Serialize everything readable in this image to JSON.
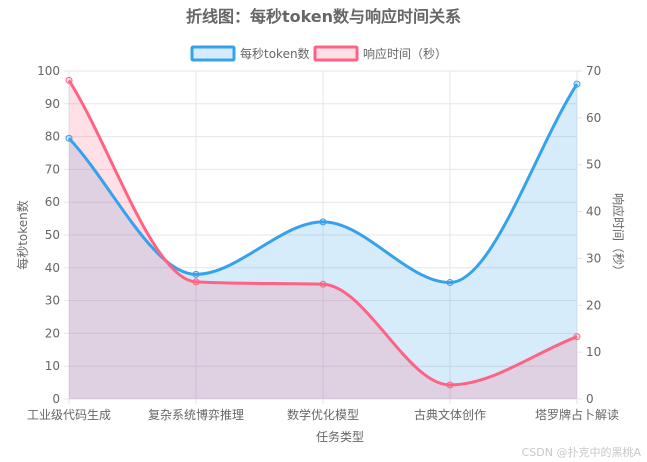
{
  "chart_data": {
    "type": "line",
    "title": "折线图：每秒token数与响应时间关系",
    "categories": [
      "工业级代码生成",
      "复杂系统博弈推理",
      "数学优化模型",
      "古典文体创作",
      "塔罗牌占卜解读"
    ],
    "xlabel": "任务类型",
    "ylabel_left": "每秒token数",
    "ylabel_right": "响应时间（秒）",
    "ylim_left": [
      0,
      100
    ],
    "ylim_right": [
      0,
      70
    ],
    "yticks_left": [
      "0",
      "10",
      "20",
      "30",
      "40",
      "50",
      "60",
      "70",
      "80",
      "90",
      "100"
    ],
    "yticks_right": [
      "0",
      "10",
      "20",
      "30",
      "40",
      "50",
      "60",
      "70"
    ],
    "grid": true,
    "legend_position": "top",
    "series": [
      {
        "name": "每秒token数",
        "axis": "left",
        "values": [
          79.5,
          38,
          54,
          35.5,
          96
        ],
        "color": "#36a2eb",
        "fill": "rgba(54,162,235,0.2)"
      },
      {
        "name": "响应时间（秒）",
        "axis": "right",
        "values": [
          68,
          25,
          24.5,
          3,
          13.3
        ],
        "color": "#ff6384",
        "fill": "rgba(255,99,132,0.2)"
      }
    ]
  },
  "watermark": "CSDN @扑克中的黑桃A"
}
